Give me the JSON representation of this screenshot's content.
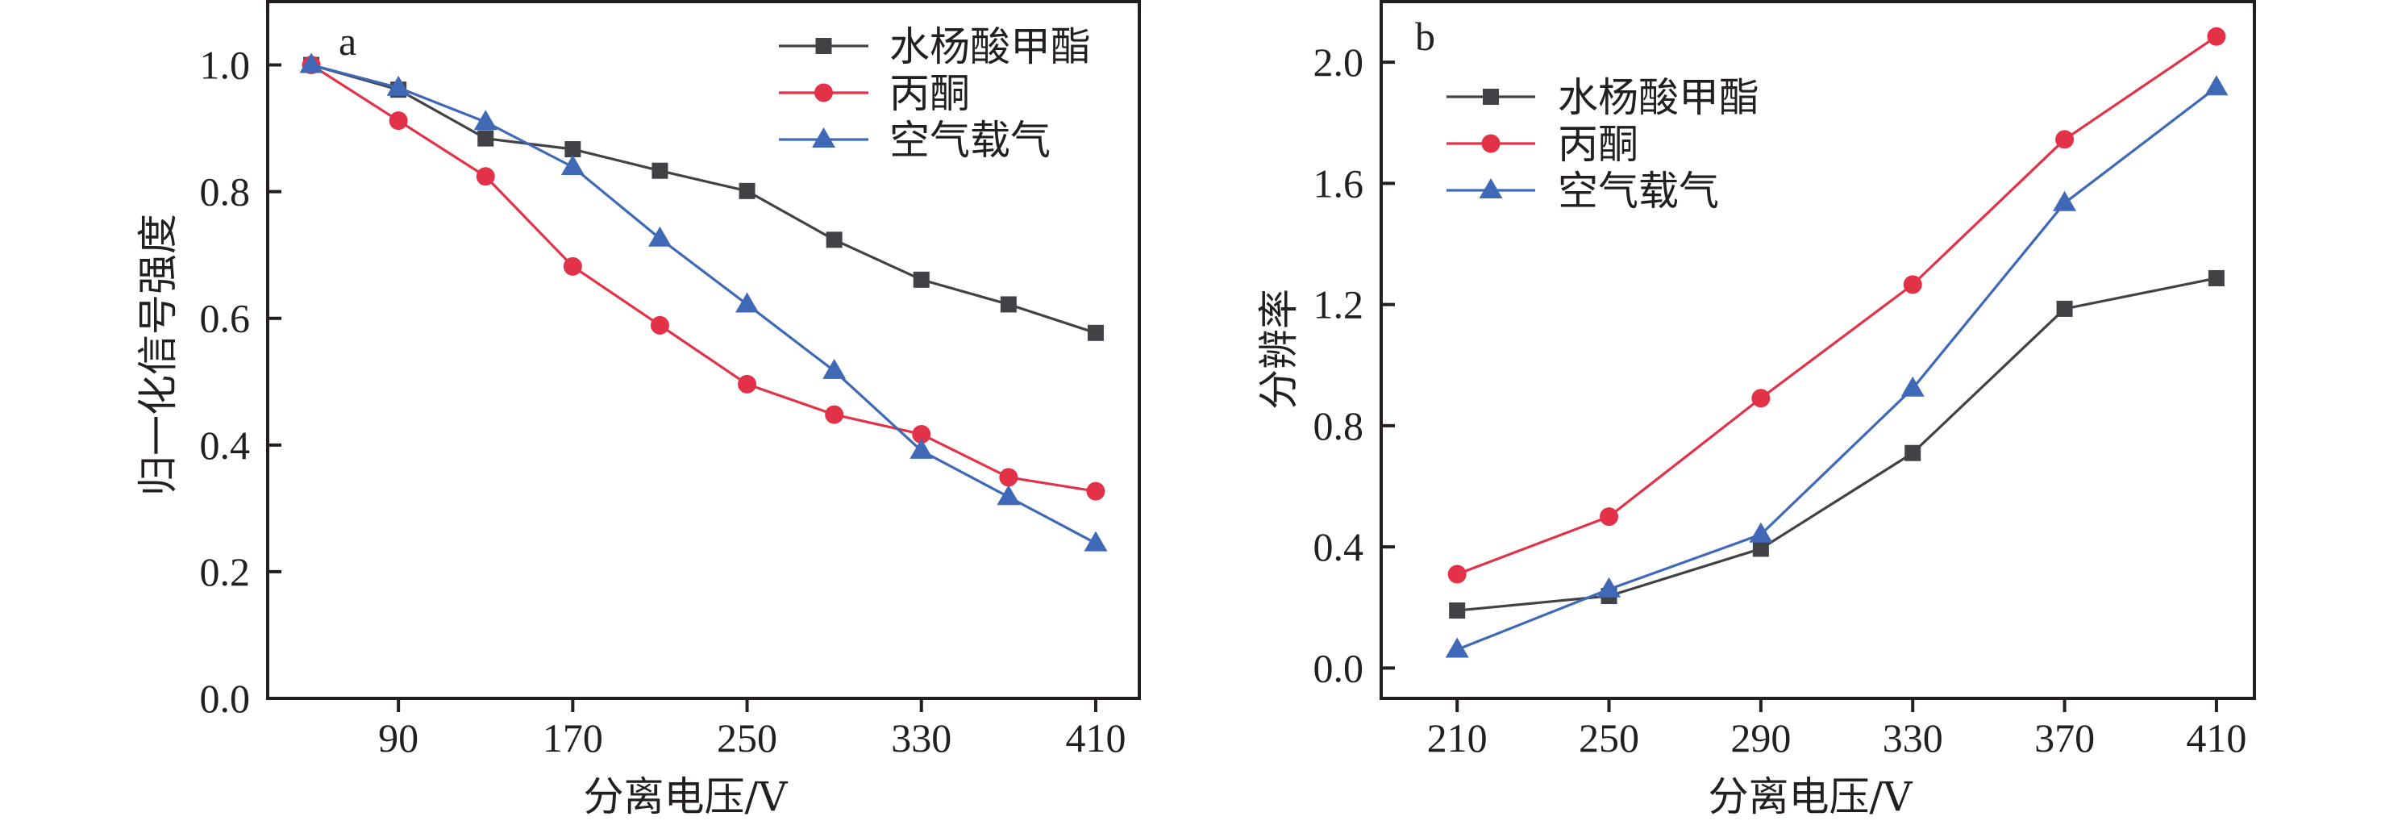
{
  "figure": {
    "panels": [
      "a",
      "b"
    ]
  },
  "chart_data": [
    {
      "type": "line",
      "panel_label": "a",
      "title": "",
      "xlabel": "分离电压/V",
      "ylabel": "归一化信号强度",
      "xlim": [
        30,
        430
      ],
      "ylim": [
        0,
        1.1
      ],
      "xticks": [
        90,
        170,
        250,
        330,
        410
      ],
      "xtick_labels": [
        "90",
        "170",
        "250",
        "330",
        "410"
      ],
      "yticks": [
        0.0,
        0.2,
        0.4,
        0.6,
        0.8,
        1.0
      ],
      "ytick_labels": [
        "0.0",
        "0.2",
        "0.4",
        "0.6",
        "0.8",
        "1.0"
      ],
      "grid": false,
      "legend_position": "top-right",
      "x": [
        50,
        90,
        130,
        170,
        210,
        250,
        290,
        330,
        370,
        410
      ],
      "series": [
        {
          "name": "水杨酸甲酯",
          "marker": "square",
          "color": "#414246",
          "values": [
            1.0,
            0.961,
            0.884,
            0.867,
            0.833,
            0.801,
            0.724,
            0.661,
            0.622,
            0.577
          ]
        },
        {
          "name": "丙酮",
          "marker": "circle",
          "color": "#e33248",
          "values": [
            1.0,
            0.912,
            0.824,
            0.682,
            0.589,
            0.496,
            0.448,
            0.417,
            0.349,
            0.327
          ]
        },
        {
          "name": "空气载气",
          "marker": "triangle",
          "color": "#3f69b6",
          "values": [
            1.0,
            0.964,
            0.91,
            0.839,
            0.726,
            0.622,
            0.517,
            0.391,
            0.318,
            0.245
          ]
        }
      ]
    },
    {
      "type": "line",
      "panel_label": "b",
      "title": "",
      "xlabel": "分离电压/V",
      "ylabel": "分辨率",
      "xlim": [
        190,
        420
      ],
      "ylim": [
        -0.1,
        2.2
      ],
      "xticks": [
        210,
        250,
        290,
        330,
        370,
        410
      ],
      "xtick_labels": [
        "210",
        "250",
        "290",
        "330",
        "370",
        "410"
      ],
      "yticks": [
        0.0,
        0.4,
        0.8,
        1.2,
        1.6,
        2.0
      ],
      "ytick_labels": [
        "0.0",
        "0.4",
        "0.8",
        "1.2",
        "1.6",
        "2.0"
      ],
      "grid": false,
      "legend_position": "top-left",
      "x": [
        210,
        250,
        290,
        330,
        370,
        410
      ],
      "series": [
        {
          "name": "水杨酸甲酯",
          "marker": "square",
          "color": "#414246",
          "values": [
            0.19,
            0.238,
            0.394,
            0.71,
            1.186,
            1.287
          ]
        },
        {
          "name": "丙酮",
          "marker": "circle",
          "color": "#e33248",
          "values": [
            0.31,
            0.5,
            0.891,
            1.266,
            1.745,
            2.085
          ]
        },
        {
          "name": "空气载气",
          "marker": "triangle",
          "color": "#3f69b6",
          "values": [
            0.061,
            0.26,
            0.441,
            0.923,
            1.535,
            1.917
          ]
        }
      ]
    }
  ]
}
